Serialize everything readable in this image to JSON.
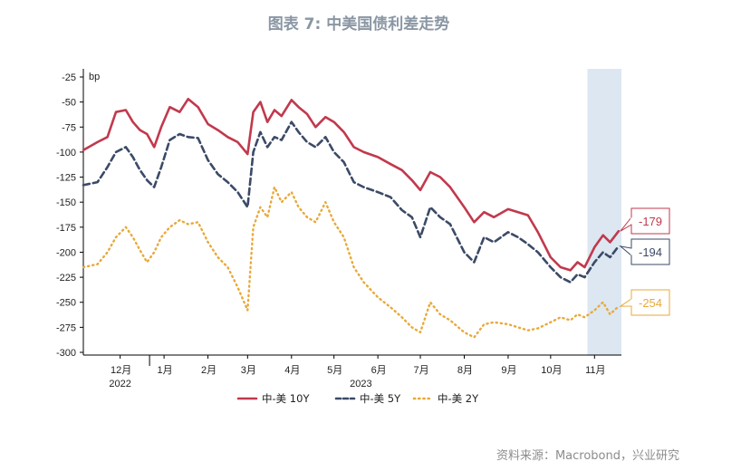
{
  "title": "图表 7:  中美国债利差走势",
  "source": "资料来源：Macrobond，兴业研究",
  "colors": {
    "series_10y": "#c1394d",
    "series_5y": "#3b4a66",
    "series_2y": "#e8a93a",
    "highlight": "#dce7f2",
    "title": "#8a96a3"
  },
  "chart_data": {
    "type": "line",
    "title": "图表 7:  中美国债利差走势",
    "ylabel": "bp",
    "ylim": [
      -300,
      -25
    ],
    "yticks": [
      -25,
      -50,
      -75,
      -100,
      -125,
      -150,
      -175,
      -200,
      -225,
      -250,
      -275,
      -300
    ],
    "xlim": [
      "2022-11-05",
      "2023-11-20"
    ],
    "xticks": [
      {
        "label": "12月",
        "date": "2022-12-01"
      },
      {
        "label": "1月",
        "date": "2023-01-01"
      },
      {
        "label": "2月",
        "date": "2023-02-01"
      },
      {
        "label": "3月",
        "date": "2023-03-01"
      },
      {
        "label": "4月",
        "date": "2023-04-01"
      },
      {
        "label": "5月",
        "date": "2023-05-01"
      },
      {
        "label": "6月",
        "date": "2023-06-01"
      },
      {
        "label": "7月",
        "date": "2023-07-01"
      },
      {
        "label": "8月",
        "date": "2023-08-01"
      },
      {
        "label": "9月",
        "date": "2023-09-01"
      },
      {
        "label": "10月",
        "date": "2023-10-01"
      },
      {
        "label": "11月",
        "date": "2023-11-01"
      }
    ],
    "year_labels": [
      {
        "label": "2022",
        "date": "2022-12-01"
      },
      {
        "label": "2023",
        "date": "2023-05-20"
      }
    ],
    "highlight_range": [
      "2023-10-27",
      "2023-11-20"
    ],
    "legend_position": "bottom-center",
    "series": [
      {
        "name": "中-美 10Y",
        "style": "solid",
        "points": [
          [
            "2022-11-05",
            -98
          ],
          [
            "2022-11-15",
            -90
          ],
          [
            "2022-11-22",
            -85
          ],
          [
            "2022-11-28",
            -60
          ],
          [
            "2022-12-05",
            -58
          ],
          [
            "2022-12-10",
            -70
          ],
          [
            "2022-12-15",
            -78
          ],
          [
            "2022-12-20",
            -82
          ],
          [
            "2022-12-25",
            -95
          ],
          [
            "2022-12-30",
            -75
          ],
          [
            "2023-01-05",
            -55
          ],
          [
            "2023-01-12",
            -60
          ],
          [
            "2023-01-18",
            -47
          ],
          [
            "2023-01-25",
            -55
          ],
          [
            "2023-02-01",
            -72
          ],
          [
            "2023-02-08",
            -78
          ],
          [
            "2023-02-15",
            -85
          ],
          [
            "2023-02-22",
            -90
          ],
          [
            "2023-03-01",
            -102
          ],
          [
            "2023-03-05",
            -60
          ],
          [
            "2023-03-10",
            -50
          ],
          [
            "2023-03-15",
            -70
          ],
          [
            "2023-03-20",
            -58
          ],
          [
            "2023-03-25",
            -64
          ],
          [
            "2023-04-01",
            -48
          ],
          [
            "2023-04-06",
            -55
          ],
          [
            "2023-04-12",
            -62
          ],
          [
            "2023-04-18",
            -75
          ],
          [
            "2023-04-25",
            -65
          ],
          [
            "2023-05-01",
            -70
          ],
          [
            "2023-05-08",
            -80
          ],
          [
            "2023-05-15",
            -95
          ],
          [
            "2023-05-22",
            -100
          ],
          [
            "2023-06-01",
            -105
          ],
          [
            "2023-06-10",
            -112
          ],
          [
            "2023-06-18",
            -118
          ],
          [
            "2023-06-25",
            -128
          ],
          [
            "2023-07-01",
            -138
          ],
          [
            "2023-07-08",
            -120
          ],
          [
            "2023-07-15",
            -125
          ],
          [
            "2023-07-22",
            -135
          ],
          [
            "2023-08-01",
            -155
          ],
          [
            "2023-08-08",
            -170
          ],
          [
            "2023-08-15",
            -160
          ],
          [
            "2023-08-22",
            -165
          ],
          [
            "2023-09-01",
            -157
          ],
          [
            "2023-09-08",
            -160
          ],
          [
            "2023-09-15",
            -163
          ],
          [
            "2023-09-22",
            -180
          ],
          [
            "2023-10-01",
            -205
          ],
          [
            "2023-10-08",
            -215
          ],
          [
            "2023-10-15",
            -218
          ],
          [
            "2023-10-20",
            -210
          ],
          [
            "2023-10-25",
            -215
          ],
          [
            "2023-11-01",
            -195
          ],
          [
            "2023-11-07",
            -183
          ],
          [
            "2023-11-12",
            -190
          ],
          [
            "2023-11-18",
            -179
          ]
        ]
      },
      {
        "name": "中-美 5Y",
        "style": "dashed",
        "points": [
          [
            "2022-11-05",
            -133
          ],
          [
            "2022-11-15",
            -130
          ],
          [
            "2022-11-22",
            -115
          ],
          [
            "2022-11-28",
            -100
          ],
          [
            "2022-12-05",
            -95
          ],
          [
            "2022-12-10",
            -105
          ],
          [
            "2022-12-15",
            -118
          ],
          [
            "2022-12-20",
            -128
          ],
          [
            "2022-12-25",
            -135
          ],
          [
            "2022-12-30",
            -115
          ],
          [
            "2023-01-05",
            -88
          ],
          [
            "2023-01-12",
            -82
          ],
          [
            "2023-01-18",
            -85
          ],
          [
            "2023-01-25",
            -86
          ],
          [
            "2023-02-01",
            -108
          ],
          [
            "2023-02-08",
            -122
          ],
          [
            "2023-02-15",
            -130
          ],
          [
            "2023-02-22",
            -140
          ],
          [
            "2023-03-01",
            -155
          ],
          [
            "2023-03-05",
            -100
          ],
          [
            "2023-03-10",
            -80
          ],
          [
            "2023-03-15",
            -95
          ],
          [
            "2023-03-20",
            -85
          ],
          [
            "2023-03-25",
            -88
          ],
          [
            "2023-04-01",
            -70
          ],
          [
            "2023-04-06",
            -80
          ],
          [
            "2023-04-12",
            -90
          ],
          [
            "2023-04-18",
            -95
          ],
          [
            "2023-04-25",
            -85
          ],
          [
            "2023-05-01",
            -100
          ],
          [
            "2023-05-08",
            -110
          ],
          [
            "2023-05-15",
            -130
          ],
          [
            "2023-05-22",
            -135
          ],
          [
            "2023-06-01",
            -140
          ],
          [
            "2023-06-10",
            -145
          ],
          [
            "2023-06-18",
            -158
          ],
          [
            "2023-06-25",
            -165
          ],
          [
            "2023-07-01",
            -185
          ],
          [
            "2023-07-08",
            -155
          ],
          [
            "2023-07-15",
            -165
          ],
          [
            "2023-07-22",
            -172
          ],
          [
            "2023-08-01",
            -200
          ],
          [
            "2023-08-08",
            -210
          ],
          [
            "2023-08-15",
            -185
          ],
          [
            "2023-08-22",
            -190
          ],
          [
            "2023-09-01",
            -180
          ],
          [
            "2023-09-08",
            -185
          ],
          [
            "2023-09-15",
            -192
          ],
          [
            "2023-09-22",
            -200
          ],
          [
            "2023-10-01",
            -215
          ],
          [
            "2023-10-08",
            -225
          ],
          [
            "2023-10-15",
            -230
          ],
          [
            "2023-10-20",
            -222
          ],
          [
            "2023-10-25",
            -225
          ],
          [
            "2023-11-01",
            -210
          ],
          [
            "2023-11-07",
            -200
          ],
          [
            "2023-11-12",
            -205
          ],
          [
            "2023-11-18",
            -194
          ]
        ]
      },
      {
        "name": "中-美 2Y",
        "style": "dotted",
        "points": [
          [
            "2022-11-05",
            -215
          ],
          [
            "2022-11-15",
            -212
          ],
          [
            "2022-11-22",
            -200
          ],
          [
            "2022-11-28",
            -185
          ],
          [
            "2022-12-05",
            -175
          ],
          [
            "2022-12-10",
            -185
          ],
          [
            "2022-12-15",
            -198
          ],
          [
            "2022-12-20",
            -210
          ],
          [
            "2022-12-25",
            -200
          ],
          [
            "2022-12-30",
            -185
          ],
          [
            "2023-01-05",
            -175
          ],
          [
            "2023-01-12",
            -168
          ],
          [
            "2023-01-18",
            -172
          ],
          [
            "2023-01-25",
            -170
          ],
          [
            "2023-02-01",
            -190
          ],
          [
            "2023-02-08",
            -205
          ],
          [
            "2023-02-15",
            -215
          ],
          [
            "2023-02-22",
            -235
          ],
          [
            "2023-03-01",
            -258
          ],
          [
            "2023-03-05",
            -175
          ],
          [
            "2023-03-10",
            -155
          ],
          [
            "2023-03-15",
            -165
          ],
          [
            "2023-03-20",
            -135
          ],
          [
            "2023-03-25",
            -150
          ],
          [
            "2023-04-01",
            -140
          ],
          [
            "2023-04-06",
            -155
          ],
          [
            "2023-04-12",
            -165
          ],
          [
            "2023-04-18",
            -170
          ],
          [
            "2023-04-25",
            -150
          ],
          [
            "2023-05-01",
            -170
          ],
          [
            "2023-05-08",
            -185
          ],
          [
            "2023-05-15",
            -215
          ],
          [
            "2023-05-22",
            -230
          ],
          [
            "2023-06-01",
            -245
          ],
          [
            "2023-06-10",
            -255
          ],
          [
            "2023-06-18",
            -265
          ],
          [
            "2023-06-25",
            -275
          ],
          [
            "2023-07-01",
            -280
          ],
          [
            "2023-07-08",
            -250
          ],
          [
            "2023-07-15",
            -262
          ],
          [
            "2023-07-22",
            -268
          ],
          [
            "2023-08-01",
            -280
          ],
          [
            "2023-08-08",
            -285
          ],
          [
            "2023-08-15",
            -272
          ],
          [
            "2023-08-22",
            -270
          ],
          [
            "2023-09-01",
            -272
          ],
          [
            "2023-09-08",
            -275
          ],
          [
            "2023-09-15",
            -278
          ],
          [
            "2023-09-22",
            -276
          ],
          [
            "2023-10-01",
            -270
          ],
          [
            "2023-10-08",
            -265
          ],
          [
            "2023-10-15",
            -268
          ],
          [
            "2023-10-20",
            -262
          ],
          [
            "2023-10-25",
            -265
          ],
          [
            "2023-11-01",
            -258
          ],
          [
            "2023-11-07",
            -250
          ],
          [
            "2023-11-12",
            -262
          ],
          [
            "2023-11-18",
            -254
          ]
        ]
      }
    ],
    "callouts": [
      {
        "series": "中-美 10Y",
        "label": "-179",
        "value": -179
      },
      {
        "series": "中-美 5Y",
        "label": "-194",
        "value": -194
      },
      {
        "series": "中-美 2Y",
        "label": "-254",
        "value": -254
      }
    ]
  }
}
